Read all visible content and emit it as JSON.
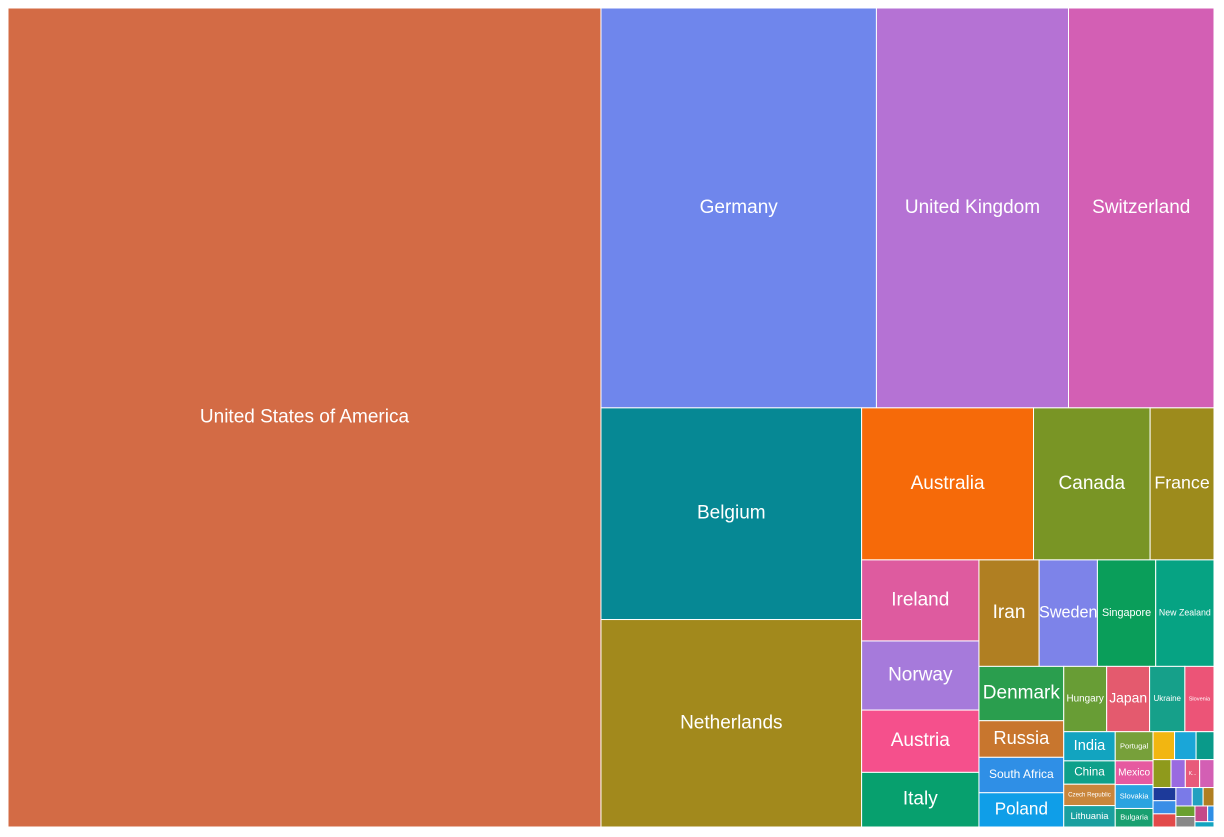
{
  "chart_data": {
    "type": "treemap",
    "categories": [
      "United States of America",
      "Germany",
      "United Kingdom",
      "Switzerland",
      "Belgium",
      "Netherlands",
      "Australia",
      "Canada",
      "France",
      "Ireland",
      "Norway",
      "Austria",
      "Italy",
      "Iran",
      "Sweden",
      "Singapore",
      "New Zealand",
      "Denmark",
      "Russia",
      "South Africa",
      "Poland",
      "Hungary",
      "Japan",
      "Ukraine",
      "Slovenia",
      "India",
      "China",
      "Czech Republic",
      "Lithuania",
      "Portugal",
      "Mexico",
      "Slovakia",
      "Bulgaria",
      null,
      null,
      null,
      null,
      null,
      "K...",
      null,
      null,
      null,
      null,
      null,
      null,
      null,
      null,
      null,
      null,
      null,
      null
    ],
    "values": [
      4850,
      1100,
      767,
      581,
      551,
      540,
      261,
      177,
      97,
      95,
      81,
      73,
      64,
      64,
      62,
      62,
      62,
      46,
      31,
      30,
      29,
      28,
      28,
      23,
      19,
      15,
      12,
      11,
      11,
      11,
      9,
      9,
      7,
      6,
      6,
      5,
      5,
      4,
      4,
      4,
      3,
      3,
      3,
      3,
      2,
      2,
      2,
      2,
      2,
      1,
      1
    ],
    "colors": [
      "#d36b45",
      "#6f86ec",
      "#b572d4",
      "#d35fb4",
      "#068894",
      "#a2891c",
      "#f66a09",
      "#799525",
      "#9d8b1c",
      "#de5b9f",
      "#a67adb",
      "#f5508c",
      "#07a06e",
      "#b07f22",
      "#7d83e9",
      "#0a9e5a",
      "#06a383",
      "#2a9e4e",
      "#c8762e",
      "#2f8fe6",
      "#0f9ee8",
      "#689d35",
      "#e45a6e",
      "#16a08a",
      "#ec5477",
      "#12a4c0",
      "#0ea08a",
      "#c9863c",
      "#1aa0a0",
      "#77a03a",
      "#e65aa0",
      "#2aa3e0",
      "#19a070",
      "#f2b611",
      "#1aa6d8",
      "#0a9a8a",
      "#8f9a1c",
      "#9a6ae0",
      "#e85a7a",
      "#d35fb4",
      "#1d3a9a",
      "#3a8ee6",
      "#e24a4a",
      "#7a7ae8",
      "#22a0c0",
      "#b07f22",
      "#6aa030",
      "#888888",
      "#c44a8a",
      "#2f8fe6",
      "#12a4c0"
    ]
  }
}
